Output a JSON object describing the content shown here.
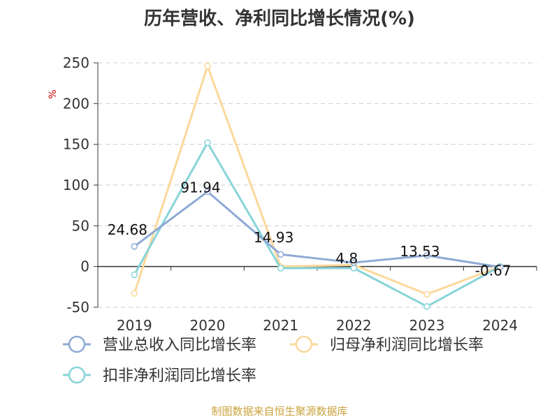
{
  "chart_data": {
    "type": "line",
    "title": "历年营收、净利同比增长情况(%)",
    "ylabel": "%",
    "categories": [
      "2019",
      "2020",
      "2021",
      "2022",
      "2023",
      "2024"
    ],
    "ylim": [
      -50,
      250
    ],
    "yticks": [
      250,
      200,
      150,
      100,
      50,
      0,
      -50
    ],
    "grid": true,
    "legend_position": "bottom",
    "series": [
      {
        "name": "营业总收入同比增长率",
        "color": "#8eaad6",
        "values": [
          24.68,
          91.94,
          14.93,
          4.8,
          13.53,
          -0.67
        ],
        "labels": [
          "24.68",
          "91.94",
          "14.93",
          "4.8",
          "13.53",
          "-0.67"
        ]
      },
      {
        "name": "归母净利润同比增长率",
        "color": "#fbd89a",
        "values": [
          -33,
          246,
          0,
          2,
          -34,
          0
        ]
      },
      {
        "name": "扣非净利润同比增长率",
        "color": "#88d4d8",
        "values": [
          -10,
          152,
          -2,
          -2,
          -49,
          0
        ]
      }
    ]
  },
  "source": "制图数据来自恒生聚源数据库"
}
